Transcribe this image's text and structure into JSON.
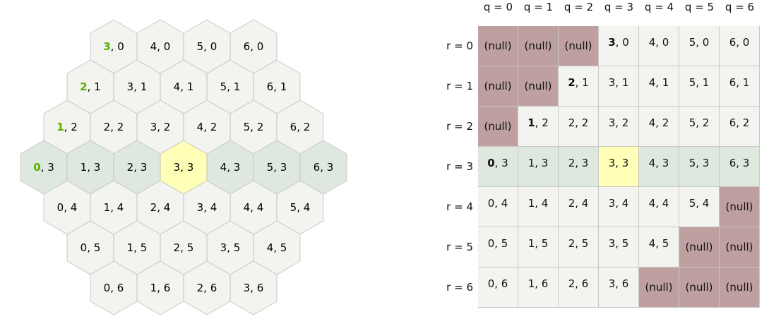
{
  "colors": {
    "cell": "#f3f3ef",
    "row_band": "#dfe8df",
    "center": "#ffffb7",
    "null": "#bfa0a0",
    "highlight_q": "#58b000",
    "border": "#c8c8c4"
  },
  "hex_cells": [
    {
      "q": "3",
      "r": "0"
    },
    {
      "q": "4",
      "r": "0"
    },
    {
      "q": "5",
      "r": "0"
    },
    {
      "q": "6",
      "r": "0"
    },
    {
      "q": "2",
      "r": "1"
    },
    {
      "q": "3",
      "r": "1"
    },
    {
      "q": "4",
      "r": "1"
    },
    {
      "q": "5",
      "r": "1"
    },
    {
      "q": "6",
      "r": "1"
    },
    {
      "q": "1",
      "r": "2"
    },
    {
      "q": "2",
      "r": "2"
    },
    {
      "q": "3",
      "r": "2"
    },
    {
      "q": "4",
      "r": "2"
    },
    {
      "q": "5",
      "r": "2"
    },
    {
      "q": "6",
      "r": "2"
    },
    {
      "q": "0",
      "r": "3"
    },
    {
      "q": "1",
      "r": "3"
    },
    {
      "q": "2",
      "r": "3"
    },
    {
      "q": "3",
      "r": "3"
    },
    {
      "q": "4",
      "r": "3"
    },
    {
      "q": "5",
      "r": "3"
    },
    {
      "q": "6",
      "r": "3"
    },
    {
      "q": "0",
      "r": "4"
    },
    {
      "q": "1",
      "r": "4"
    },
    {
      "q": "2",
      "r": "4"
    },
    {
      "q": "3",
      "r": "4"
    },
    {
      "q": "4",
      "r": "4"
    },
    {
      "q": "5",
      "r": "4"
    },
    {
      "q": "0",
      "r": "5"
    },
    {
      "q": "1",
      "r": "5"
    },
    {
      "q": "2",
      "r": "5"
    },
    {
      "q": "3",
      "r": "5"
    },
    {
      "q": "4",
      "r": "5"
    },
    {
      "q": "0",
      "r": "6"
    },
    {
      "q": "1",
      "r": "6"
    },
    {
      "q": "2",
      "r": "6"
    },
    {
      "q": "3",
      "r": "6"
    }
  ],
  "table": {
    "col_headers": [
      "q = 0",
      "q = 1",
      "q = 2",
      "q = 3",
      "q = 4",
      "q = 5",
      "q = 6"
    ],
    "row_headers": [
      "r = 0",
      "r = 1",
      "r = 2",
      "r = 3",
      "r = 4",
      "r = 5",
      "r = 6"
    ],
    "null_label": "(null)",
    "rows": [
      [
        "(null)",
        "(null)",
        "(null)",
        "3, 0",
        "4, 0",
        "5, 0",
        "6, 0"
      ],
      [
        "(null)",
        "(null)",
        "2, 1",
        "3, 1",
        "4, 1",
        "5, 1",
        "6, 1"
      ],
      [
        "(null)",
        "1, 2",
        "2, 2",
        "3, 2",
        "4, 2",
        "5, 2",
        "6, 2"
      ],
      [
        "0, 3",
        "1, 3",
        "2, 3",
        "3, 3",
        "4, 3",
        "5, 3",
        "6, 3"
      ],
      [
        "0, 4",
        "1, 4",
        "2, 4",
        "3, 4",
        "4, 4",
        "5, 4",
        "(null)"
      ],
      [
        "0, 5",
        "1, 5",
        "2, 5",
        "3, 5",
        "4, 5",
        "(null)",
        "(null)"
      ],
      [
        "0, 6",
        "1, 6",
        "2, 6",
        "3, 6",
        "(null)",
        "(null)",
        "(null)"
      ]
    ]
  }
}
